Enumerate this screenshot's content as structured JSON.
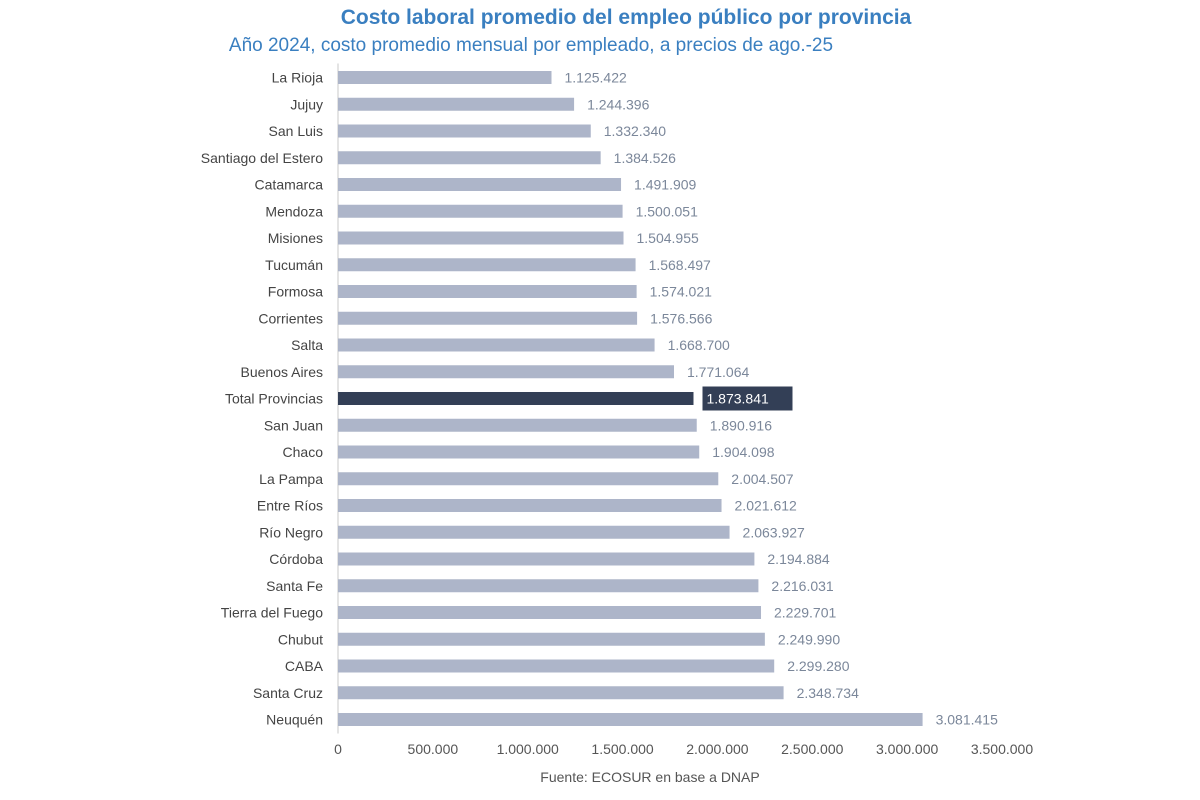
{
  "chart_data": {
    "type": "bar",
    "orientation": "horizontal",
    "title": "Costo laboral promedio del empleo público por provincia",
    "subtitle": "Año 2024, costo promedio mensual por empleado, a precios de ago.-25",
    "source": "Fuente: ECOSUR en base a DNAP",
    "xlim": [
      0,
      3500000
    ],
    "ticks": [
      0,
      500000,
      1000000,
      1500000,
      2000000,
      2500000,
      3000000,
      3500000
    ],
    "tick_labels": [
      "0",
      "500.000",
      "1.000.000",
      "1.500.000",
      "2.000.000",
      "2.500.000",
      "3.000.000",
      "3.500.000"
    ],
    "categories": [
      "La Rioja",
      "Jujuy",
      "San Luis",
      "Santiago del Estero",
      "Catamarca",
      "Mendoza",
      "Misiones",
      "Tucumán",
      "Formosa",
      "Corrientes",
      "Salta",
      "Buenos Aires",
      "Total Provincias",
      "San Juan",
      "Chaco",
      "La Pampa",
      "Entre Ríos",
      "Río Negro",
      "Córdoba",
      "Santa Fe",
      "Tierra del Fuego",
      "Chubut",
      "CABA",
      "Santa Cruz",
      "Neuquén"
    ],
    "values": [
      1125422,
      1244396,
      1332340,
      1384526,
      1491909,
      1500051,
      1504955,
      1568497,
      1574021,
      1576566,
      1668700,
      1771064,
      1873841,
      1890916,
      1904098,
      2004507,
      2021612,
      2063927,
      2194884,
      2216031,
      2229701,
      2249990,
      2299280,
      2348734,
      3081415
    ],
    "value_labels": [
      "1.125.422",
      "1.244.396",
      "1.332.340",
      "1.384.526",
      "1.491.909",
      "1.500.051",
      "1.504.955",
      "1.568.497",
      "1.574.021",
      "1.576.566",
      "1.668.700",
      "1.771.064",
      "1.873.841",
      "1.890.916",
      "1.904.098",
      "2.004.507",
      "2.021.612",
      "2.063.927",
      "2.194.884",
      "2.216.031",
      "2.229.701",
      "2.249.990",
      "2.299.280",
      "2.348.734",
      "3.081.415"
    ],
    "highlight": "Total Provincias",
    "colors": {
      "bar": "#adb5c9",
      "highlight_bar": "#333f56",
      "title": "#3a7fc0"
    },
    "grid": false
  }
}
